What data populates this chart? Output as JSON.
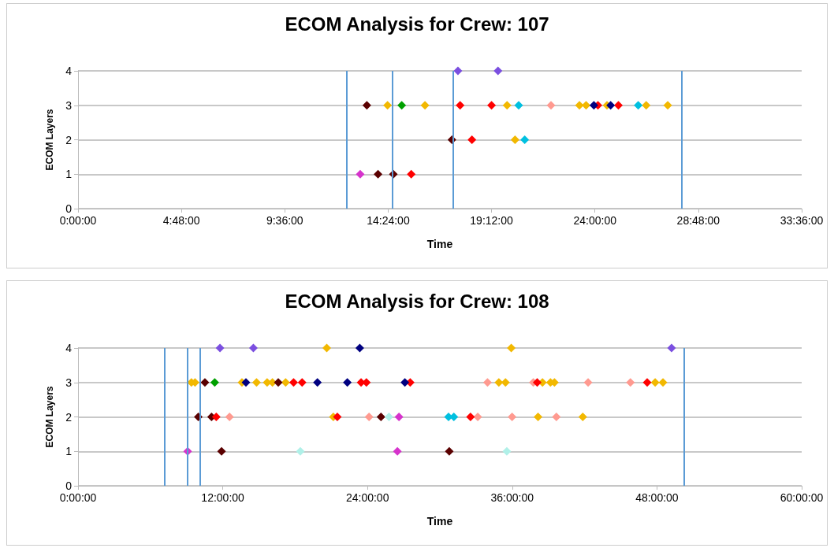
{
  "chart_data": [
    {
      "type": "scatter",
      "title": "ECOM Analysis for Crew: 107",
      "xlabel": "Time",
      "ylabel": "ECOM Layers",
      "xlim": [
        0,
        33.6
      ],
      "xticks": [
        {
          "value": 0,
          "label": "0:00:00"
        },
        {
          "value": 4.8,
          "label": "4:48:00"
        },
        {
          "value": 9.6,
          "label": "9:36:00"
        },
        {
          "value": 14.4,
          "label": "14:24:00"
        },
        {
          "value": 19.2,
          "label": "19:12:00"
        },
        {
          "value": 24,
          "label": "24:00:00"
        },
        {
          "value": 28.8,
          "label": "28:48:00"
        },
        {
          "value": 33.6,
          "label": "33:36:00"
        }
      ],
      "ylim": [
        0,
        4
      ],
      "yticks": [
        0,
        1,
        2,
        3,
        4
      ],
      "grid": "y",
      "marker": "diamond",
      "ref_lines": [
        {
          "axis": "x",
          "value": 12.47,
          "color": "#5b9bd5"
        },
        {
          "axis": "x",
          "value": 14.6,
          "color": "#5b9bd5"
        },
        {
          "axis": "x",
          "value": 17.43,
          "color": "#5b9bd5"
        },
        {
          "axis": "x",
          "value": 28.02,
          "color": "#5b9bd5"
        }
      ],
      "series": [
        {
          "color": "#7b4fe0",
          "x": [
            17.64,
            19.5
          ],
          "values": [
            4,
            4
          ]
        },
        {
          "color": "#5a0000",
          "x": [
            13.41,
            17.36,
            13.93,
            14.64
          ],
          "values": [
            3,
            2,
            1,
            1
          ]
        },
        {
          "color": "#f2b800",
          "x": [
            14.37,
            16.11,
            19.92,
            23.28,
            23.59,
            24.56,
            26.38,
            27.38,
            20.29
          ],
          "values": [
            3,
            3,
            3,
            3,
            3,
            3,
            3,
            3,
            2
          ]
        },
        {
          "color": "#00a000",
          "x": [
            15.03
          ],
          "values": [
            3
          ]
        },
        {
          "color": "#ff9a90",
          "x": [
            21.96
          ],
          "values": [
            3
          ]
        },
        {
          "color": "#ff0000",
          "x": [
            17.74,
            19.2,
            24.14,
            25.09,
            18.29,
            15.47
          ],
          "values": [
            3,
            3,
            3,
            3,
            2,
            1
          ]
        },
        {
          "color": "#000080",
          "x": [
            23.95,
            24.73
          ],
          "values": [
            3,
            3
          ]
        },
        {
          "color": "#00c0e0",
          "x": [
            20.46,
            26.01,
            20.74
          ],
          "values": [
            3,
            3,
            2
          ]
        },
        {
          "color": "#d633cc",
          "x": [
            13.1
          ],
          "values": [
            1
          ]
        }
      ]
    },
    {
      "type": "scatter",
      "title": "ECOM Analysis for Crew: 108",
      "xlabel": "Time",
      "ylabel": "ECOM Layers",
      "xlim": [
        0,
        60
      ],
      "xticks": [
        {
          "value": 0,
          "label": "0:00:00"
        },
        {
          "value": 12,
          "label": "12:00:00"
        },
        {
          "value": 24,
          "label": "24:00:00"
        },
        {
          "value": 36,
          "label": "36:00:00"
        },
        {
          "value": 48,
          "label": "48:00:00"
        },
        {
          "value": 60,
          "label": "60:00:00"
        }
      ],
      "ylim": [
        0,
        4
      ],
      "yticks": [
        0,
        1,
        2,
        3,
        4
      ],
      "grid": "y",
      "marker": "diamond",
      "ref_lines": [
        {
          "axis": "x",
          "value": 7.18,
          "color": "#5b9bd5"
        },
        {
          "axis": "x",
          "value": 9.09,
          "color": "#5b9bd5"
        },
        {
          "axis": "x",
          "value": 10.14,
          "color": "#5b9bd5"
        },
        {
          "axis": "x",
          "value": 50.26,
          "color": "#5b9bd5"
        }
      ],
      "series": [
        {
          "color": "#7b4fe0",
          "x": [
            11.77,
            14.54,
            49.21
          ],
          "values": [
            4,
            4,
            4
          ]
        },
        {
          "color": "#f2b800",
          "x": [
            20.62,
            35.92,
            9.4,
            9.7,
            13.59,
            14.8,
            15.68,
            16.12,
            17.21,
            34.89,
            35.44,
            38.51,
            39.17,
            39.5,
            47.85,
            48.5,
            21.17,
            38.14,
            41.85
          ],
          "values": [
            4,
            4,
            3,
            3,
            3,
            3,
            3,
            3,
            3,
            3,
            3,
            3,
            3,
            3,
            3,
            3,
            2,
            2,
            2
          ]
        },
        {
          "color": "#5a0000",
          "x": [
            10.52,
            16.6,
            9.97,
            11.07,
            25.12,
            11.9,
            30.78
          ],
          "values": [
            3,
            3,
            2,
            2,
            2,
            1,
            1
          ]
        },
        {
          "color": "#00a000",
          "x": [
            11.33
          ],
          "values": [
            3
          ]
        },
        {
          "color": "#ff9a90",
          "x": [
            33.95,
            37.75,
            42.29,
            45.8,
            12.56,
            24.13,
            33.14,
            35.99,
            39.66
          ],
          "values": [
            3,
            3,
            3,
            3,
            2,
            2,
            2,
            2,
            2
          ]
        },
        {
          "color": "#ff0000",
          "x": [
            17.87,
            18.58,
            23.47,
            23.91,
            27.54,
            38.07,
            47.19,
            11.46,
            21.5,
            32.54
          ],
          "values": [
            3,
            3,
            3,
            3,
            3,
            3,
            3,
            2,
            2,
            2
          ]
        },
        {
          "color": "#000080",
          "x": [
            23.36,
            13.92,
            19.85,
            22.33,
            27.1
          ],
          "values": [
            4,
            3,
            3,
            3,
            3
          ]
        },
        {
          "color": "#b0f0e8",
          "x": [
            25.78,
            18.43,
            35.55
          ],
          "values": [
            2,
            1,
            1
          ]
        },
        {
          "color": "#d633cc",
          "x": [
            26.61,
            9.09,
            26.48
          ],
          "values": [
            2,
            1,
            1
          ]
        },
        {
          "color": "#00c0e0",
          "x": [
            30.72,
            31.16
          ],
          "values": [
            2,
            2
          ]
        }
      ]
    }
  ]
}
